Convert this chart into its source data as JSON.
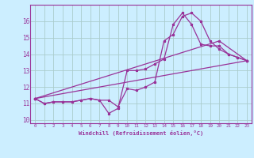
{
  "xlabel": "Windchill (Refroidissement éolien,°C)",
  "bg_color": "#cceeff",
  "line_color": "#993399",
  "xlim": [
    -0.5,
    23.5
  ],
  "ylim": [
    9.8,
    17.0
  ],
  "xticks": [
    0,
    1,
    2,
    3,
    4,
    5,
    6,
    7,
    8,
    9,
    10,
    11,
    12,
    13,
    14,
    15,
    16,
    17,
    18,
    19,
    20,
    21,
    22,
    23
  ],
  "yticks": [
    10,
    11,
    12,
    13,
    14,
    15,
    16
  ],
  "grid_color": "#aacccc",
  "line1_x": [
    0,
    1,
    2,
    3,
    4,
    5,
    6,
    7,
    8,
    9,
    10,
    11,
    12,
    13,
    14,
    15,
    16,
    17,
    18,
    19,
    20,
    21,
    22,
    23
  ],
  "line1_y": [
    11.3,
    11.0,
    11.1,
    11.1,
    11.1,
    11.2,
    11.3,
    11.2,
    11.2,
    10.8,
    11.9,
    11.8,
    12.0,
    12.3,
    14.8,
    15.2,
    16.3,
    16.5,
    16.0,
    14.8,
    14.3,
    14.0,
    13.8,
    13.6
  ],
  "line2_x": [
    0,
    1,
    2,
    3,
    4,
    5,
    6,
    7,
    8,
    9,
    10,
    11,
    12,
    13,
    14,
    15,
    16,
    17,
    18,
    19,
    20,
    21,
    22,
    23
  ],
  "line2_y": [
    11.3,
    11.0,
    11.1,
    11.1,
    11.1,
    11.2,
    11.3,
    11.2,
    10.4,
    10.7,
    13.0,
    13.0,
    13.1,
    13.4,
    13.7,
    15.8,
    16.5,
    15.8,
    14.6,
    14.5,
    14.5,
    14.0,
    13.8,
    13.6
  ],
  "line3_x": [
    0,
    23
  ],
  "line3_y": [
    11.3,
    13.6
  ],
  "line4_x": [
    0,
    20,
    23
  ],
  "line4_y": [
    11.3,
    14.8,
    13.6
  ]
}
